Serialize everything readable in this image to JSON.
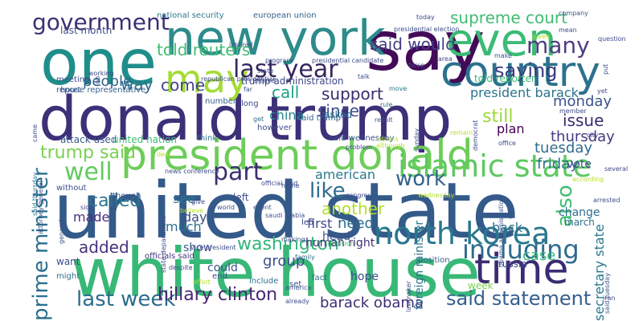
{
  "words": [
    {
      "text": "donald trump",
      "color": "#3d2f78",
      "orient": "h"
    },
    {
      "text": "united state",
      "color": "#345a8a",
      "orient": "h"
    },
    {
      "text": "white house",
      "color": "#38b877",
      "orient": "h"
    },
    {
      "text": "say",
      "color": "#430a58",
      "orient": "h"
    },
    {
      "text": "one",
      "color": "#1f8e8b",
      "orient": "h"
    },
    {
      "text": "new york",
      "color": "#2e8b8b",
      "orient": "h"
    },
    {
      "text": "president donald",
      "color": "#6dcd59",
      "orient": "h"
    },
    {
      "text": "country",
      "color": "#2c728e",
      "orient": "h"
    },
    {
      "text": "time",
      "color": "#3b2b72",
      "orient": "h"
    },
    {
      "text": "even",
      "color": "#3bbb75",
      "orient": "h"
    },
    {
      "text": "may",
      "color": "#a5db36",
      "orient": "h"
    },
    {
      "text": "last year",
      "color": "#35275f",
      "orient": "h"
    },
    {
      "text": "north korea",
      "color": "#2a788e",
      "orient": "h"
    },
    {
      "text": "islamic state",
      "color": "#5ec962",
      "orient": "h"
    },
    {
      "text": "prime minister",
      "color": "#2a6f8e",
      "orient": "v"
    },
    {
      "text": "government",
      "color": "#3e2f74",
      "orient": "h"
    },
    {
      "text": "including",
      "color": "#2e6b8e",
      "orient": "h"
    },
    {
      "text": "saying",
      "color": "#3c3b7f",
      "orient": "h"
    },
    {
      "text": "many",
      "color": "#4e3c80",
      "orient": "h"
    },
    {
      "text": "said statement",
      "color": "#355f8d",
      "orient": "h"
    },
    {
      "text": "last week",
      "color": "#2d6c8e",
      "orient": "h"
    },
    {
      "text": "part",
      "color": "#3c2f70",
      "orient": "h"
    },
    {
      "text": "work",
      "color": "#33638d",
      "orient": "h"
    },
    {
      "text": "like",
      "color": "#2f6c8d",
      "orient": "h"
    },
    {
      "text": "well",
      "color": "#62cb5f",
      "orient": "h"
    },
    {
      "text": "also",
      "color": "#3fbc73",
      "orient": "v"
    },
    {
      "text": "trump said",
      "color": "#7ad151",
      "orient": "h"
    },
    {
      "text": "supreme court",
      "color": "#3fbc73",
      "orient": "h"
    },
    {
      "text": "told reuters",
      "color": "#3fbc73",
      "orient": "h"
    },
    {
      "text": "said would",
      "color": "#433e85",
      "orient": "h"
    },
    {
      "text": "hillary clinton",
      "color": "#482576",
      "orient": "h"
    },
    {
      "text": "barack obama",
      "color": "#3f2d74",
      "orient": "h"
    },
    {
      "text": "washington",
      "color": "#31b57b",
      "orient": "h"
    },
    {
      "text": "called",
      "color": "#2a768e",
      "orient": "h"
    },
    {
      "text": "another",
      "color": "#b2dd2d",
      "orient": "h"
    },
    {
      "text": "since",
      "color": "#3e4c8a",
      "orient": "h"
    },
    {
      "text": "call",
      "color": "#1fa088",
      "orient": "h"
    },
    {
      "text": "support",
      "color": "#3a2a6e",
      "orient": "h"
    },
    {
      "text": "still",
      "color": "#9bd93c",
      "orient": "h"
    },
    {
      "text": "plan",
      "color": "#440154",
      "orient": "h"
    },
    {
      "text": "need",
      "color": "#2f6b8e",
      "orient": "h"
    },
    {
      "text": "added",
      "color": "#46337e",
      "orient": "h"
    },
    {
      "text": "president barack",
      "color": "#2c738e",
      "orient": "h"
    },
    {
      "text": "case",
      "color": "#38b977",
      "orient": "h"
    },
    {
      "text": "issue",
      "color": "#3a2b6e",
      "orient": "h"
    },
    {
      "text": "come",
      "color": "#414487",
      "orient": "h"
    },
    {
      "text": "way",
      "color": "#2e6e8e",
      "orient": "h"
    },
    {
      "text": "people",
      "color": "#33638d",
      "orient": "h"
    },
    {
      "text": "tuesday",
      "color": "#2f6c8e",
      "orient": "h"
    },
    {
      "text": "friday",
      "color": "#2d708e",
      "orient": "h"
    },
    {
      "text": "monday",
      "color": "#3b528b",
      "orient": "h"
    },
    {
      "text": "thursday",
      "color": "#443a83",
      "orient": "h"
    },
    {
      "text": "secretary state",
      "color": "#29788e",
      "orient": "v"
    },
    {
      "text": "see",
      "color": "#2a768e",
      "orient": "h"
    },
    {
      "text": "day",
      "color": "#3d4e8a",
      "orient": "h"
    },
    {
      "text": "show",
      "color": "#38598c",
      "orient": "h"
    },
    {
      "text": "much",
      "color": "#2c718e",
      "orient": "h"
    },
    {
      "text": "first",
      "color": "#3e4989",
      "orient": "h"
    },
    {
      "text": "american",
      "color": "#2a788e",
      "orient": "h"
    },
    {
      "text": "group",
      "color": "#3d4e8a",
      "orient": "h"
    },
    {
      "text": "back",
      "color": "#2d6f8e",
      "orient": "h"
    },
    {
      "text": "china",
      "color": "#24868e",
      "orient": "h"
    },
    {
      "text": "made",
      "color": "#4a2f7d",
      "orient": "h"
    },
    {
      "text": "last month",
      "color": "#3e4c8a",
      "orient": "h"
    },
    {
      "text": "told reporter",
      "color": "#3bbb75",
      "orient": "h"
    },
    {
      "text": "trump administration",
      "color": "#3f4788",
      "orient": "h"
    },
    {
      "text": "human right",
      "color": "#3f2f75",
      "orient": "h"
    },
    {
      "text": "national security",
      "color": "#2a788e",
      "orient": "h"
    },
    {
      "text": "european union",
      "color": "#33638d",
      "orient": "h"
    },
    {
      "text": "attack used",
      "color": "#3b5a8b",
      "orient": "h"
    },
    {
      "text": "united nation",
      "color": "#3fbc73",
      "orient": "h"
    },
    {
      "text": "think",
      "color": "#2a778e",
      "orient": "h"
    },
    {
      "text": "said trump",
      "color": "#355e8d",
      "orient": "h"
    },
    {
      "text": "said wednesday",
      "color": "#3b528b",
      "orient": "h"
    },
    {
      "text": "asked",
      "color": "#2a6f8e",
      "orient": "h"
    },
    {
      "text": "house representative",
      "color": "#355f8d",
      "orient": "h"
    },
    {
      "text": "foreign minister",
      "color": "#2b748e",
      "orient": "v"
    },
    {
      "text": "saudi arabia",
      "color": "#3b528b",
      "orient": "h"
    },
    {
      "text": "official said",
      "color": "#3e4a89",
      "orient": "h"
    },
    {
      "text": "officials said",
      "color": "#46337e",
      "orient": "h"
    },
    {
      "text": "state department",
      "color": "#3e4c8a",
      "orient": "v"
    },
    {
      "text": "attorney general",
      "color": "#3b528b",
      "orient": "v"
    },
    {
      "text": "said thursday",
      "color": "#2c728e",
      "orient": "v"
    },
    {
      "text": "obama administration",
      "color": "#3b528b",
      "orient": "v"
    },
    {
      "text": "vote",
      "color": "#3e4a89",
      "orient": "h"
    },
    {
      "text": "change",
      "color": "#2e6e8e",
      "orient": "h"
    },
    {
      "text": "left",
      "color": "#3e4c8a",
      "orient": "h"
    },
    {
      "text": "wednesday",
      "color": "#b5de2b",
      "orient": "h"
    },
    {
      "text": "meeting",
      "color": "#3e4c8a",
      "orient": "h"
    },
    {
      "text": "report",
      "color": "#3b528b",
      "orient": "h"
    },
    {
      "text": "long",
      "color": "#3e4a89",
      "orient": "h"
    },
    {
      "text": "number",
      "color": "#355f8d",
      "orient": "h"
    },
    {
      "text": "however",
      "color": "#3e4c8a",
      "orient": "h"
    },
    {
      "text": "without",
      "color": "#3b528b",
      "orient": "h"
    },
    {
      "text": "want",
      "color": "#3e4c8a",
      "orient": "h"
    },
    {
      "text": "might",
      "color": "#2e6e8e",
      "orient": "h"
    },
    {
      "text": "could",
      "color": "#3b528b",
      "orient": "h"
    },
    {
      "text": "end",
      "color": "#3e4c8a",
      "orient": "h"
    },
    {
      "text": "include",
      "color": "#2c728e",
      "orient": "h"
    },
    {
      "text": "set",
      "color": "#3b528b",
      "orient": "h"
    },
    {
      "text": "fact",
      "color": "#2e6e8e",
      "orient": "h"
    },
    {
      "text": "hope",
      "color": "#3e4c8a",
      "orient": "h"
    },
    {
      "text": "led",
      "color": "#3e4a89",
      "orient": "h"
    },
    {
      "text": "head",
      "color": "#3b528b",
      "orient": "h"
    },
    {
      "text": "decision",
      "color": "#3fbc73",
      "orient": "h"
    },
    {
      "text": "week",
      "color": "#7ad151",
      "orient": "h"
    },
    {
      "text": "position",
      "color": "#355f8d",
      "orient": "h"
    },
    {
      "text": "russia",
      "color": "#3e4c8a",
      "orient": "h"
    },
    {
      "text": "march",
      "color": "#2e6e8e",
      "orient": "h"
    },
    {
      "text": "result",
      "color": "#3b528b",
      "orient": "h"
    },
    {
      "text": "problem",
      "color": "#3e4a89",
      "orient": "h"
    },
    {
      "text": "others",
      "color": "#b5de2b",
      "orient": "h"
    },
    {
      "text": "although",
      "color": "#b5de2b",
      "orient": "h"
    },
    {
      "text": "effort",
      "color": "#b5de2b",
      "orient": "h"
    },
    {
      "text": "already",
      "color": "#3e4c8a",
      "orient": "h"
    },
    {
      "text": "america",
      "color": "#3b528b",
      "orient": "h"
    },
    {
      "text": "family",
      "color": "#2e6e8e",
      "orient": "h"
    },
    {
      "text": "home",
      "color": "#3e4c8a",
      "orient": "h"
    },
    {
      "text": "event",
      "color": "#3b528b",
      "orient": "h"
    },
    {
      "text": "believe",
      "color": "#b5de2b",
      "orient": "h"
    },
    {
      "text": "deal",
      "color": "#b5de2b",
      "orient": "h"
    },
    {
      "text": "though",
      "color": "#3b528b",
      "orient": "h"
    },
    {
      "text": "congress",
      "color": "#3e4a89",
      "orient": "h"
    },
    {
      "text": "according",
      "color": "#b5de2b",
      "orient": "h"
    },
    {
      "text": "general",
      "color": "#3b528b",
      "orient": "v"
    },
    {
      "text": "came",
      "color": "#3e4c8a",
      "orient": "v"
    },
    {
      "text": "job",
      "color": "#3e4c8a",
      "orient": "v"
    },
    {
      "text": "get",
      "color": "#2e6e8e",
      "orient": "h"
    },
    {
      "text": "move",
      "color": "#2a788e",
      "orient": "h"
    },
    {
      "text": "talk",
      "color": "#3b528b",
      "orient": "h"
    },
    {
      "text": "rule",
      "color": "#2e6e8e",
      "orient": "h"
    },
    {
      "text": "far",
      "color": "#3b528b",
      "orient": "h"
    },
    {
      "text": "around",
      "color": "#3e4c8a",
      "orient": "h"
    },
    {
      "text": "program",
      "color": "#3e4a89",
      "orient": "h"
    },
    {
      "text": "make",
      "color": "#3b528b",
      "orient": "h"
    },
    {
      "text": "given",
      "color": "#b5de2b",
      "orient": "h"
    },
    {
      "text": "instead",
      "color": "#3e4c8a",
      "orient": "h"
    },
    {
      "text": "today",
      "color": "#3e4a89",
      "orient": "h"
    },
    {
      "text": "company",
      "color": "#3b528b",
      "orient": "h"
    },
    {
      "text": "presidential election",
      "color": "#3e4c8a",
      "orient": "h"
    },
    {
      "text": "member",
      "color": "#3e4c8a",
      "orient": "h"
    },
    {
      "text": "put",
      "color": "#3b528b",
      "orient": "v"
    },
    {
      "text": "yet",
      "color": "#3e4a89",
      "orient": "h"
    },
    {
      "text": "mean",
      "color": "#3e4c8a",
      "orient": "h"
    },
    {
      "text": "said tuesday",
      "color": "#3b528b",
      "orient": "v"
    },
    {
      "text": "city",
      "color": "#3e4c8a",
      "orient": "h"
    },
    {
      "text": "lawmaker",
      "color": "#3e4c8a",
      "orient": "v"
    },
    {
      "text": "sunday",
      "color": "#3e4c8a",
      "orient": "v"
    },
    {
      "text": "democrat",
      "color": "#3e4a89",
      "orient": "v"
    },
    {
      "text": "remain",
      "color": "#b5de2b",
      "orient": "h"
    },
    {
      "text": "news conference",
      "color": "#3e4c8a",
      "orient": "h"
    },
    {
      "text": "republican presidential",
      "color": "#3e4c8a",
      "orient": "h"
    },
    {
      "text": "vice president",
      "color": "#3e4c8a",
      "orient": "h"
    },
    {
      "text": "presidential candidate",
      "color": "#3e4c8a",
      "orient": "h"
    },
    {
      "text": "working",
      "color": "#3e4c8a",
      "orient": "h"
    },
    {
      "text": "state",
      "color": "#3e4c8a",
      "orient": "h"
    },
    {
      "text": "area",
      "color": "#3e4c8a",
      "orient": "h"
    },
    {
      "text": "office",
      "color": "#3e4c8a",
      "orient": "h"
    },
    {
      "text": "question",
      "color": "#3e4c8a",
      "orient": "h"
    },
    {
      "text": "several",
      "color": "#3e4c8a",
      "orient": "h"
    },
    {
      "text": "force",
      "color": "#3e4c8a",
      "orient": "h"
    },
    {
      "text": "world",
      "color": "#3e4c8a",
      "orient": "h"
    },
    {
      "text": "give",
      "color": "#3e4c8a",
      "orient": "h"
    },
    {
      "text": "making",
      "color": "#3e4c8a",
      "orient": "h"
    },
    {
      "text": "among",
      "color": "#3e4c8a",
      "orient": "h"
    },
    {
      "text": "arrested",
      "color": "#3e4c8a",
      "orient": "h"
    },
    {
      "text": "iran",
      "color": "#3e4c8a",
      "orient": "h"
    },
    {
      "text": "despite",
      "color": "#3e4c8a",
      "orient": "h"
    },
    {
      "text": "side",
      "color": "#3e4c8a",
      "orient": "h"
    }
  ]
}
